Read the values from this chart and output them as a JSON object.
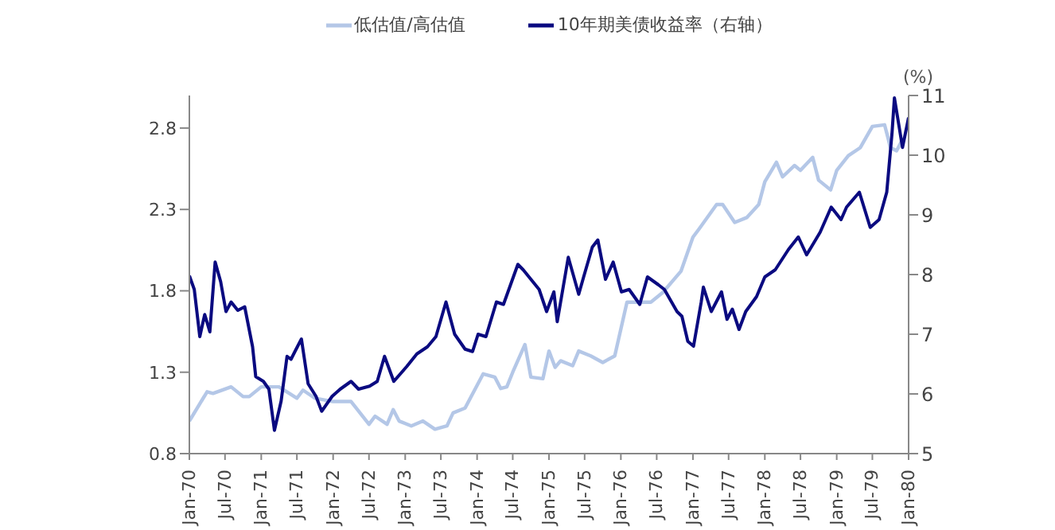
{
  "chart_data": {
    "type": "line",
    "legend": "top",
    "grid": false,
    "marker": "none",
    "line_style": "solid",
    "xlim": [
      "1970-01-01",
      "1980-01-01"
    ],
    "xticks": [
      {
        "value": "1970-01-01",
        "label": "Jan-70"
      },
      {
        "value": "1970-07-01",
        "label": "Jul-70"
      },
      {
        "value": "1971-01-01",
        "label": "Jan-71"
      },
      {
        "value": "1971-07-01",
        "label": "Jul-71"
      },
      {
        "value": "1972-01-01",
        "label": "Jan-72"
      },
      {
        "value": "1972-07-01",
        "label": "Jul-72"
      },
      {
        "value": "1973-01-01",
        "label": "Jan-73"
      },
      {
        "value": "1973-07-01",
        "label": "Jul-73"
      },
      {
        "value": "1974-01-01",
        "label": "Jan-74"
      },
      {
        "value": "1974-07-01",
        "label": "Jul-74"
      },
      {
        "value": "1975-01-01",
        "label": "Jan-75"
      },
      {
        "value": "1975-07-01",
        "label": "Jul-75"
      },
      {
        "value": "1976-01-01",
        "label": "Jan-76"
      },
      {
        "value": "1976-07-01",
        "label": "Jul-76"
      },
      {
        "value": "1977-01-01",
        "label": "Jan-77"
      },
      {
        "value": "1977-07-01",
        "label": "Jul-77"
      },
      {
        "value": "1978-01-01",
        "label": "Jan-78"
      },
      {
        "value": "1978-07-01",
        "label": "Jul-78"
      },
      {
        "value": "1979-01-01",
        "label": "Jan-79"
      },
      {
        "value": "1979-07-01",
        "label": "Jul-79"
      },
      {
        "value": "1980-01-01",
        "label": "Jan-80"
      }
    ],
    "ylim": [
      0.8,
      3.0
    ],
    "yticks": [
      0.8,
      1.3,
      1.8,
      2.3,
      2.8
    ],
    "y2label": "(%)",
    "y2lim": [
      5,
      11
    ],
    "y2ticks": [
      5,
      6,
      7,
      8,
      9,
      10,
      11
    ],
    "series": [
      {
        "name": "低估值/高估值",
        "color": "#b4c7e7",
        "x": [
          "1970-01",
          "1970-04",
          "1970-05",
          "1970-08",
          "1970-10",
          "1970-11",
          "1971-01",
          "1971-04",
          "1971-07",
          "1971-08",
          "1971-10",
          "1972-01",
          "1972-04",
          "1972-07",
          "1972-08",
          "1972-10",
          "1972-11",
          "1972-12",
          "1973-02",
          "1973-04",
          "1973-06",
          "1973-08",
          "1973-09",
          "1973-11",
          "1974-02",
          "1974-04",
          "1974-05",
          "1974-06",
          "1974-07",
          "1974-09",
          "1974-10",
          "1974-12",
          "1975-01",
          "1975-02",
          "1975-03",
          "1975-05",
          "1975-06",
          "1975-08",
          "1975-10",
          "1975-12",
          "1976-02",
          "1976-06",
          "1976-08",
          "1976-11",
          "1977-01",
          "1977-02",
          "1977-05",
          "1977-06",
          "1977-08",
          "1977-10",
          "1977-12",
          "1978-01",
          "1978-03",
          "1978-04",
          "1978-06",
          "1978-07",
          "1978-09",
          "1978-10",
          "1978-12",
          "1979-01",
          "1979-03",
          "1979-05",
          "1979-07",
          "1979-09",
          "1979-10",
          "1979-11",
          "1979-12"
        ],
        "values": [
          1.0,
          1.18,
          1.17,
          1.21,
          1.15,
          1.15,
          1.21,
          1.21,
          1.14,
          1.19,
          1.14,
          1.12,
          1.12,
          0.98,
          1.03,
          0.98,
          1.07,
          1.0,
          0.97,
          1.0,
          0.95,
          0.97,
          1.05,
          1.08,
          1.29,
          1.27,
          1.2,
          1.21,
          1.3,
          1.47,
          1.27,
          1.26,
          1.43,
          1.33,
          1.37,
          1.34,
          1.43,
          1.4,
          1.36,
          1.4,
          1.73,
          1.73,
          1.79,
          1.92,
          2.13,
          2.18,
          2.33,
          2.33,
          2.22,
          2.25,
          2.33,
          2.47,
          2.59,
          2.5,
          2.57,
          2.54,
          2.62,
          2.48,
          2.42,
          2.54,
          2.63,
          2.68,
          2.81,
          2.82,
          2.68,
          2.66,
          2.73
        ]
      },
      {
        "name": "10年期美债收益率（右轴）",
        "color": "#0a0a80",
        "axis": "y2",
        "x": [
          "1970-01-01",
          "1970-01-26",
          "1970-02-23",
          "1970-03-20",
          "1970-04-15",
          "1970-05-12",
          "1970-06-09",
          "1970-07-06",
          "1970-08-01",
          "1970-09-04",
          "1970-10-09",
          "1970-11-18",
          "1970-12-04",
          "1971-01-12",
          "1971-02-09",
          "1971-03-09",
          "1971-04-12",
          "1971-05-12",
          "1971-06-01",
          "1971-06-21",
          "1971-07-24",
          "1971-08-27",
          "1971-10-06",
          "1971-11-04",
          "1971-12-27",
          "1972-02-06",
          "1972-04-01",
          "1972-05-09",
          "1972-07-04",
          "1972-08-12",
          "1972-09-18",
          "1972-11-04",
          "1973-01-09",
          "1973-03-01",
          "1973-04-24",
          "1973-06-06",
          "1973-07-27",
          "1973-09-09",
          "1973-11-01",
          "1973-12-09",
          "1974-01-06",
          "1974-02-15",
          "1974-04-09",
          "1974-05-15",
          "1974-07-27",
          "1974-08-23",
          "1974-11-12",
          "1974-12-20",
          "1975-01-26",
          "1975-02-12",
          "1975-04-09",
          "1975-06-01",
          "1975-06-26",
          "1975-08-09",
          "1975-09-06",
          "1975-10-15",
          "1975-11-23",
          "1976-01-04",
          "1976-02-12",
          "1976-04-06",
          "1976-05-15",
          "1976-07-09",
          "1976-08-09",
          "1976-10-12",
          "1976-11-06",
          "1976-12-06",
          "1977-01-04",
          "1977-02-12",
          "1977-02-23",
          "1977-04-04",
          "1977-05-26",
          "1977-06-23",
          "1977-07-20",
          "1977-08-23",
          "1977-09-26",
          "1977-11-20",
          "1978-01-01",
          "1978-02-23",
          "1978-05-01",
          "1978-06-20",
          "1978-08-01",
          "1978-10-09",
          "1978-12-04",
          "1979-01-23",
          "1979-02-20",
          "1979-04-26",
          "1979-06-20",
          "1979-08-04",
          "1979-09-12",
          "1979-10-09",
          "1979-10-21",
          "1979-12-01",
          "1980-01-01"
        ],
        "values": [
          7.98,
          7.75,
          6.96,
          7.33,
          7.04,
          8.21,
          7.88,
          7.38,
          7.54,
          7.4,
          7.46,
          6.79,
          6.29,
          6.21,
          6.08,
          5.39,
          5.88,
          6.63,
          6.58,
          6.71,
          6.92,
          6.17,
          5.96,
          5.71,
          5.96,
          6.08,
          6.21,
          6.08,
          6.13,
          6.21,
          6.63,
          6.21,
          6.46,
          6.67,
          6.79,
          6.96,
          7.54,
          7.0,
          6.75,
          6.71,
          7.0,
          6.96,
          7.54,
          7.5,
          8.17,
          8.08,
          7.75,
          7.38,
          7.71,
          7.21,
          8.29,
          7.67,
          7.96,
          8.46,
          8.58,
          7.92,
          8.21,
          7.71,
          7.75,
          7.5,
          7.96,
          7.83,
          7.75,
          7.38,
          7.3,
          6.88,
          6.8,
          7.54,
          7.79,
          7.38,
          7.71,
          7.25,
          7.42,
          7.08,
          7.38,
          7.63,
          7.96,
          8.08,
          8.42,
          8.63,
          8.33,
          8.71,
          9.13,
          8.92,
          9.13,
          9.38,
          8.79,
          8.92,
          9.38,
          10.38,
          10.96,
          10.13,
          10.63
        ]
      }
    ]
  }
}
